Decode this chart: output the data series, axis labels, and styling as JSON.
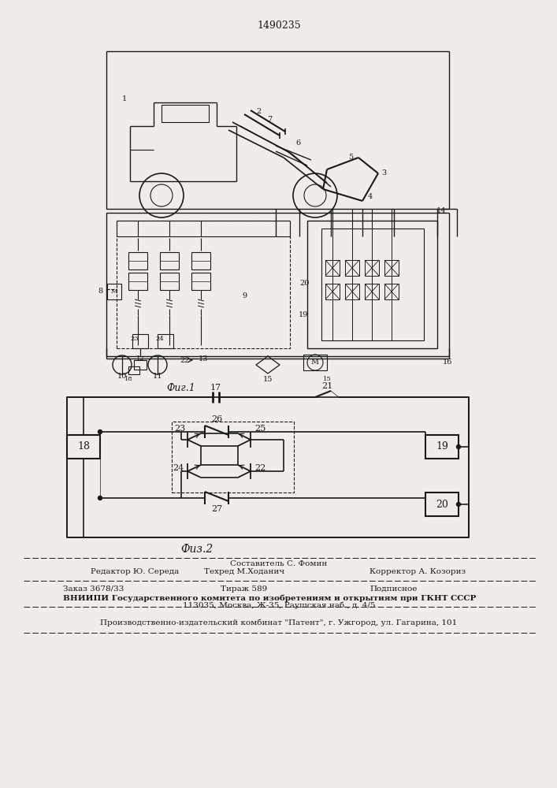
{
  "patent_number": "1490235",
  "fig1_caption": "Фиг.1",
  "fig2_caption": "Физ.2",
  "bg_color": "#f0ede8",
  "line_color": "#1a1a1a",
  "fig2_caption_italic": "Физ.2",
  "footer": {
    "line1_center": "Составитель С. Фомин",
    "line2_left": "Редактор Ю. Середа",
    "line2_center": "Техред М.Ходанич",
    "line2_right": "Корректор А. Козориз",
    "line3_left": "Заказ 3678/33",
    "line3_center": "Тираж 589",
    "line3_right": "Подписное",
    "line4": "ВНИИПИ Государственного комитета по изобретениям и открытиям при ГКНТ СССР",
    "line5": "113035, Москва, Ж-35, Раушская наб., д. 4/5",
    "line6": "Производственно-издательский комбинат \"Патент\", г. Ужгород, ул. Гагарина, 101"
  }
}
